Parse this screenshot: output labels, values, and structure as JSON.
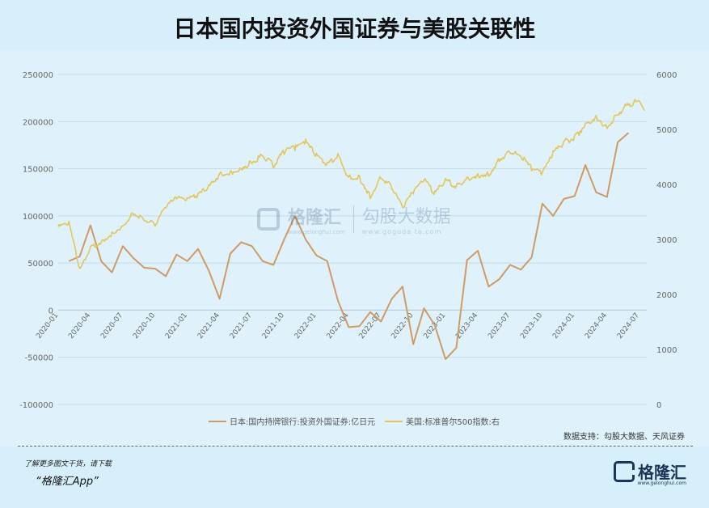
{
  "page": {
    "title": "日本国内投资外国证券与美股关联性",
    "source": "数据支持：勾股大数据、天风证券",
    "footer_note": "了解更多图文干货，请下载",
    "footer_app": "“格隆汇App”",
    "logo_name": "格隆汇",
    "logo_url": "www.gelonghui.com",
    "watermark": {
      "left": "格隆汇",
      "left_url": "www.gelonghui.com",
      "right": "勾股大数据",
      "right_url": "www.goguda ta.com"
    }
  },
  "colors": {
    "series_japan": "#cf9b63",
    "series_sp500": "#e3c65a",
    "grid": "#c4dae8",
    "axis_text": "#666666"
  },
  "chart_data": {
    "type": "line",
    "title": "日本国内投资外国证券与美股关联性",
    "left_axis": {
      "ylim": [
        -100000,
        250000
      ],
      "ticks": [
        -100000,
        -50000,
        0,
        50000,
        100000,
        150000,
        200000,
        250000
      ],
      "tick_labels": [
        "-100000",
        "-50000",
        "0",
        "50000",
        "100000",
        "150000",
        "200000",
        "250000"
      ]
    },
    "right_axis": {
      "ylim": [
        0,
        6000
      ],
      "ticks": [
        0,
        1000,
        2000,
        3000,
        4000,
        5000,
        6000
      ],
      "tick_labels": [
        "0",
        "1000",
        "2000",
        "3000",
        "4000",
        "5000",
        "6000"
      ]
    },
    "x_tick_labels": [
      "2020-01",
      "2020-04",
      "2020-07",
      "2020-10",
      "2021-01",
      "2021-04",
      "2021-07",
      "2021-10",
      "2022-01",
      "2022-04",
      "2022-07",
      "2022-10",
      "2023-01",
      "2023-04",
      "2023-07",
      "2023-10",
      "2024-01",
      "2024-04",
      "2024-07"
    ],
    "grid": true,
    "legend_position": "bottom",
    "series": [
      {
        "name": "日本:国内持牌银行:投资外国证券:亿日元",
        "axis": "left",
        "x": [
          "2020-02",
          "2020-03",
          "2020-04",
          "2020-05",
          "2020-06",
          "2020-07",
          "2020-08",
          "2020-09",
          "2020-10",
          "2020-11",
          "2020-12",
          "2021-01",
          "2021-02",
          "2021-03",
          "2021-04",
          "2021-05",
          "2021-06",
          "2021-07",
          "2021-08",
          "2021-09",
          "2021-10",
          "2021-11",
          "2021-12",
          "2022-01",
          "2022-02",
          "2022-03",
          "2022-04",
          "2022-05",
          "2022-06",
          "2022-07",
          "2022-08",
          "2022-09",
          "2022-10",
          "2022-11",
          "2022-12",
          "2023-01",
          "2023-02",
          "2023-03",
          "2023-04",
          "2023-05",
          "2023-06",
          "2023-07",
          "2023-08",
          "2023-09",
          "2023-10",
          "2023-11",
          "2023-12",
          "2024-01",
          "2024-02",
          "2024-03",
          "2024-04",
          "2024-05",
          "2024-06"
        ],
        "values": [
          52000,
          57000,
          90000,
          52000,
          40000,
          68000,
          55000,
          45000,
          44000,
          36000,
          59000,
          52000,
          65000,
          42000,
          12000,
          60000,
          72000,
          68000,
          52000,
          48000,
          75000,
          100000,
          75000,
          58000,
          52000,
          10000,
          -18000,
          -17000,
          -2000,
          -12000,
          12000,
          25000,
          -36000,
          2000,
          -16000,
          -52000,
          -40000,
          53000,
          63000,
          25000,
          33000,
          48000,
          43000,
          56000,
          113000,
          100000,
          118000,
          121000,
          154000,
          125000,
          120000,
          178000,
          188000
        ]
      },
      {
        "name": "美国:标准普尔500指数:右",
        "axis": "right",
        "x": [
          "2020-01",
          "2020-02",
          "2020-03",
          "2020-04",
          "2020-05",
          "2020-06",
          "2020-07",
          "2020-08",
          "2020-09",
          "2020-10",
          "2020-11",
          "2020-12",
          "2021-01",
          "2021-02",
          "2021-03",
          "2021-04",
          "2021-05",
          "2021-06",
          "2021-07",
          "2021-08",
          "2021-09",
          "2021-10",
          "2021-11",
          "2021-12",
          "2022-01",
          "2022-02",
          "2022-03",
          "2022-04",
          "2022-05",
          "2022-06",
          "2022-07",
          "2022-08",
          "2022-09",
          "2022-10",
          "2022-11",
          "2022-12",
          "2023-01",
          "2023-02",
          "2023-03",
          "2023-04",
          "2023-05",
          "2023-06",
          "2023-07",
          "2023-08",
          "2023-09",
          "2023-10",
          "2023-11",
          "2023-12",
          "2024-01",
          "2024-02",
          "2024-03",
          "2024-04",
          "2024-05",
          "2024-06",
          "2024-07"
        ],
        "values": [
          3230,
          3300,
          2450,
          2850,
          2950,
          3100,
          3250,
          3480,
          3360,
          3270,
          3600,
          3750,
          3720,
          3810,
          3960,
          4180,
          4200,
          4300,
          4400,
          4520,
          4350,
          4600,
          4660,
          4770,
          4520,
          4370,
          4530,
          4130,
          4130,
          3785,
          4130,
          3955,
          3585,
          3870,
          4080,
          3840,
          4080,
          3970,
          4110,
          4170,
          4180,
          4450,
          4590,
          4510,
          4290,
          4190,
          4570,
          4770,
          4850,
          5100,
          5250,
          5030,
          5280,
          5460,
          5520
        ]
      }
    ]
  }
}
